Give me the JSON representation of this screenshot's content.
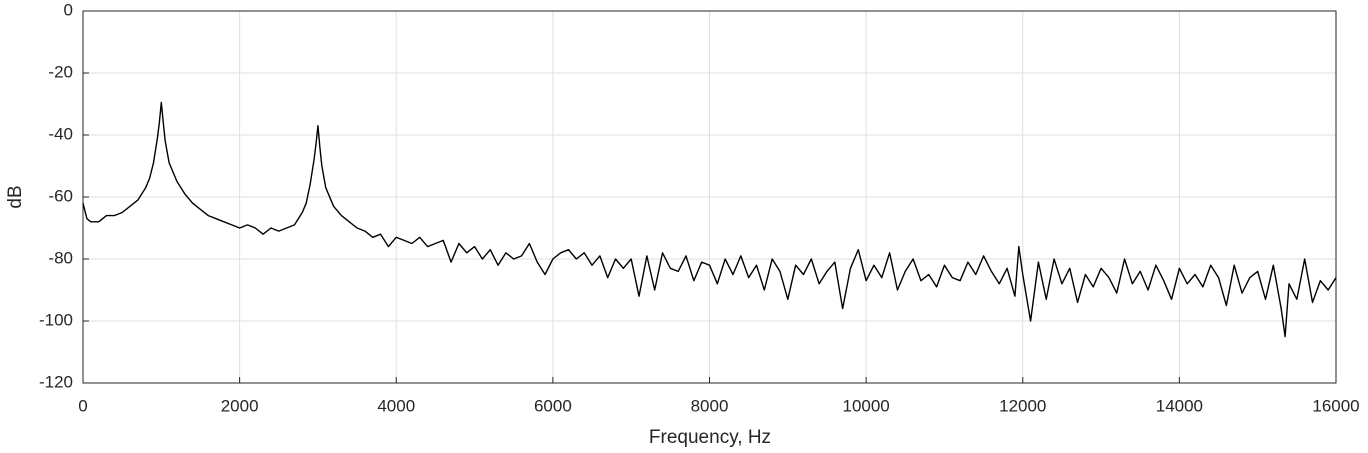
{
  "chart_data": {
    "type": "line",
    "xlabel": "Frequency, Hz",
    "ylabel": "dB",
    "x": [
      0,
      50,
      100,
      200,
      300,
      400,
      500,
      600,
      700,
      800,
      850,
      900,
      950,
      975,
      1000,
      1025,
      1050,
      1100,
      1200,
      1300,
      1400,
      1500,
      1600,
      1700,
      1800,
      1900,
      2000,
      2100,
      2200,
      2300,
      2400,
      2500,
      2600,
      2700,
      2800,
      2850,
      2900,
      2950,
      2975,
      3000,
      3025,
      3050,
      3100,
      3200,
      3300,
      3400,
      3500,
      3600,
      3700,
      3800,
      3900,
      4000,
      4100,
      4200,
      4300,
      4400,
      4500,
      4600,
      4700,
      4800,
      4900,
      5000,
      5100,
      5200,
      5300,
      5400,
      5500,
      5600,
      5700,
      5800,
      5900,
      6000,
      6100,
      6200,
      6300,
      6400,
      6500,
      6600,
      6700,
      6800,
      6900,
      7000,
      7100,
      7200,
      7300,
      7400,
      7500,
      7600,
      7700,
      7800,
      7900,
      8000,
      8100,
      8200,
      8300,
      8400,
      8500,
      8600,
      8700,
      8800,
      8900,
      9000,
      9100,
      9200,
      9300,
      9400,
      9500,
      9600,
      9700,
      9800,
      9900,
      10000,
      10100,
      10200,
      10300,
      10400,
      10500,
      10600,
      10700,
      10800,
      10900,
      11000,
      11100,
      11200,
      11300,
      11400,
      11500,
      11600,
      11700,
      11800,
      11900,
      11950,
      12000,
      12100,
      12200,
      12300,
      12400,
      12500,
      12600,
      12700,
      12800,
      12900,
      13000,
      13100,
      13200,
      13300,
      13400,
      13500,
      13600,
      13700,
      13800,
      13900,
      14000,
      14100,
      14200,
      14300,
      14400,
      14500,
      14600,
      14700,
      14800,
      14900,
      15000,
      15100,
      15200,
      15300,
      15350,
      15400,
      15500,
      15600,
      15700,
      15800,
      15900,
      16000
    ],
    "series": [
      {
        "color": "#000000",
        "values": [
          -62,
          -67,
          -68,
          -68,
          -66,
          -66,
          -65,
          -63,
          -61,
          -57,
          -54,
          -49,
          -41,
          -36,
          -29.5,
          -36,
          -42,
          -49,
          -55,
          -59,
          -62,
          -64,
          -66,
          -67,
          -68,
          -69,
          -70,
          -69,
          -70,
          -72,
          -70,
          -71,
          -70,
          -69,
          -65,
          -62,
          -56,
          -48,
          -43,
          -37,
          -44,
          -50,
          -57,
          -63,
          -66,
          -68,
          -70,
          -71,
          -73,
          -72,
          -76,
          -73,
          -74,
          -75,
          -73,
          -76,
          -75,
          -74,
          -81,
          -75,
          -78,
          -76,
          -80,
          -77,
          -82,
          -78,
          -80,
          -79,
          -75,
          -81,
          -85,
          -80,
          -78,
          -77,
          -80,
          -78,
          -82,
          -79,
          -86,
          -80,
          -83,
          -80,
          -92,
          -79,
          -90,
          -78,
          -83,
          -84,
          -79,
          -87,
          -81,
          -82,
          -88,
          -80,
          -85,
          -79,
          -86,
          -82,
          -90,
          -80,
          -84,
          -93,
          -82,
          -85,
          -80,
          -88,
          -84,
          -81,
          -96,
          -83,
          -77,
          -87,
          -82,
          -86,
          -78,
          -90,
          -84,
          -80,
          -87,
          -85,
          -89,
          -82,
          -86,
          -87,
          -81,
          -85,
          -79,
          -84,
          -88,
          -83,
          -92,
          -76,
          -85,
          -100,
          -81,
          -93,
          -80,
          -88,
          -83,
          -94,
          -85,
          -89,
          -83,
          -86,
          -91,
          -80,
          -88,
          -84,
          -90,
          -82,
          -87,
          -93,
          -83,
          -88,
          -85,
          -89,
          -82,
          -86,
          -95,
          -82,
          -91,
          -86,
          -84,
          -93,
          -82,
          -96,
          -105,
          -88,
          -93,
          -80,
          -94,
          -87,
          -90,
          -86
        ]
      }
    ],
    "xlim": [
      0,
      16000
    ],
    "xticks": [
      0,
      2000,
      4000,
      6000,
      8000,
      10000,
      12000,
      14000,
      16000
    ],
    "ylim": [
      -120,
      0
    ],
    "yticks": [
      0,
      -20,
      -40,
      -60,
      -80,
      -100,
      -120
    ],
    "grid": true
  }
}
